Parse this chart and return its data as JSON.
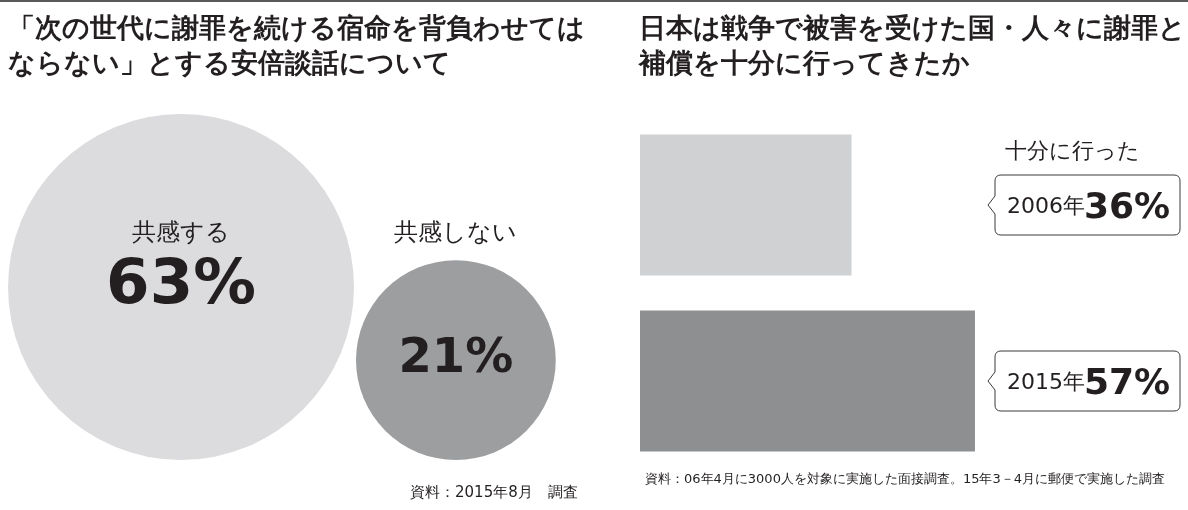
{
  "chart_data": [
    {
      "type": "other",
      "title": "「次の世代に謝罪を続ける宿命を背負わせてはならない」とする安倍談話について",
      "categories": [
        "共感する",
        "共感しない"
      ],
      "values": [
        63,
        21
      ],
      "value_labels": [
        "63%",
        "21%"
      ],
      "colors": [
        "#dcdcde",
        "#9d9ea0"
      ],
      "annotations": [
        "資料：2015年8月　調査"
      ]
    },
    {
      "type": "bar",
      "orientation": "horizontal",
      "title": "日本は戦争で被害を受けた国・人々に謝罪と補償を十分に行ってきたか",
      "categories": [
        "2006年",
        "2015年"
      ],
      "values": [
        36,
        57
      ],
      "value_labels": [
        "36%",
        "57%"
      ],
      "colors": [
        "#d0d1d3",
        "#8e8f91"
      ],
      "tick_labels": false,
      "annotations": [
        "十分に行った",
        "資料：06年4月に3000人を対象に実施した面接調査。15年3－4月に郵便で実施した調査"
      ]
    }
  ]
}
